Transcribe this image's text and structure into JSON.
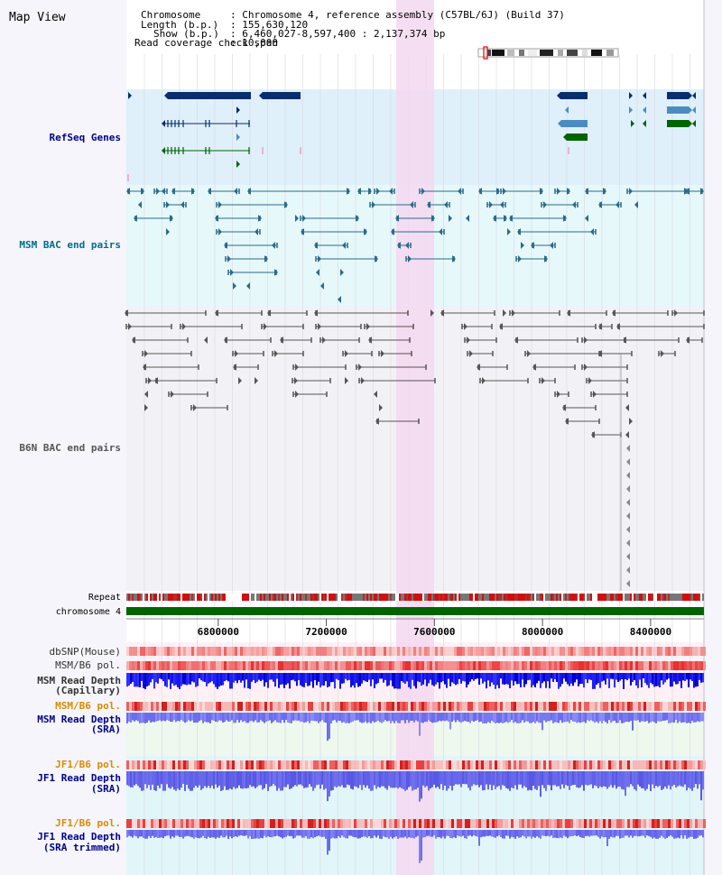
{
  "title": "Map View",
  "info": {
    "chromosome_label": "Chromosome",
    "chromosome_value": ": Chromosome 4, reference assembly (C57BL/6J) (Build 37)",
    "length_label": "Length (b.p.)",
    "length_value": ": 155,630,120",
    "show_label": "Show (b.p.)",
    "show_value": ": 6,460,027-8,597,400 : 2,137,374 bp",
    "coverage_label": "Read coverage check span",
    "coverage_value": ": 10,000"
  },
  "tracks": {
    "refseq": "RefSeq Genes",
    "msm_bac": "MSM BAC end pairs",
    "b6n_bac": "B6N BAC end pairs",
    "repeat": "Repeat",
    "chromosome": "chromosome 4",
    "dbsnp": "dbSNP(Mouse)",
    "msm_b6_pol_1": "MSM/B6 pol.",
    "msm_depth_cap_1": "MSM Read Depth",
    "msm_depth_cap_2": "(Capillary)",
    "msm_b6_pol_2": "MSM/B6 pol.",
    "msm_depth_sra_1": "MSM Read Depth",
    "msm_depth_sra_2": "(SRA)",
    "jf1_b6_pol_1": "JF1/B6 pol.",
    "jf1_depth_sra_1": "JF1 Read Depth",
    "jf1_depth_sra_2": "(SRA)",
    "jf1_b6_pol_2": "JF1/B6 pol.",
    "jf1_depth_trim_1": "JF1 Read Depth",
    "jf1_depth_trim_2": "(SRA trimmed)"
  },
  "axis": {
    "ticks": [
      {
        "value": 6800000,
        "label": "6800000"
      },
      {
        "value": 7200000,
        "label": "7200000"
      },
      {
        "value": 7600000,
        "label": "7600000"
      },
      {
        "value": 8000000,
        "label": "8000000"
      },
      {
        "value": 8400000,
        "label": "8400000"
      }
    ],
    "range": [
      6460027,
      8597400
    ]
  },
  "highlight": {
    "start": 7460000,
    "end": 7600000
  },
  "colors": {
    "gene_dark": "#0a2d6e",
    "gene_mid": "#4a8cc0",
    "gene_green": "#006400",
    "msm_pair": "#2a6a8a",
    "b6n_pair": "#555555",
    "highlight": "#f4d8f0",
    "label_blue": "#00008b",
    "label_orange": "#d98c00"
  }
}
